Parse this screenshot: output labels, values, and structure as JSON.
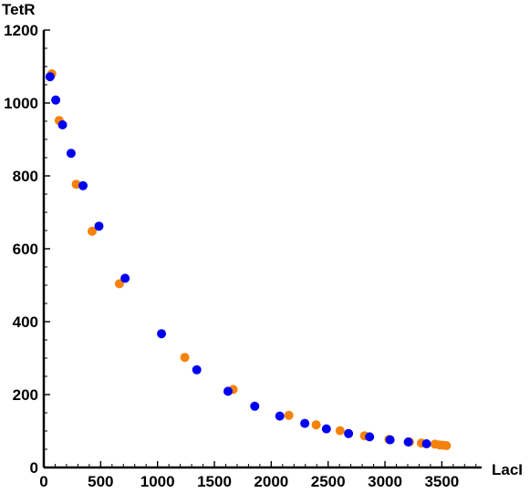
{
  "chart_data": {
    "type": "scatter",
    "title": "",
    "xlabel": "LacI",
    "ylabel": "TetR",
    "xlim": [
      0,
      3850
    ],
    "ylim": [
      0,
      1200
    ],
    "xticks": [
      0,
      500,
      1000,
      1500,
      2000,
      2500,
      3000,
      3500
    ],
    "yticks": [
      0,
      200,
      400,
      600,
      800,
      1000,
      1200
    ],
    "grid": false,
    "legend": "none",
    "series": [
      {
        "color": "#f5820d",
        "points": [
          [
            70,
            1080
          ],
          [
            135,
            952
          ],
          [
            285,
            777
          ],
          [
            425,
            648
          ],
          [
            665,
            504
          ],
          [
            1240,
            302
          ],
          [
            1665,
            214
          ],
          [
            2155,
            143
          ],
          [
            2395,
            117
          ],
          [
            2605,
            101
          ],
          [
            2820,
            87
          ],
          [
            3035,
            77
          ],
          [
            3215,
            70
          ],
          [
            3320,
            67
          ],
          [
            3440,
            64
          ],
          [
            3480,
            62
          ],
          [
            3510,
            61
          ],
          [
            3540,
            60
          ]
        ]
      },
      {
        "color": "#0000f0",
        "points": [
          [
            55,
            1072
          ],
          [
            105,
            1008
          ],
          [
            165,
            940
          ],
          [
            240,
            862
          ],
          [
            345,
            773
          ],
          [
            485,
            662
          ],
          [
            715,
            519
          ],
          [
            1035,
            367
          ],
          [
            1345,
            268
          ],
          [
            1620,
            209
          ],
          [
            1855,
            168
          ],
          [
            2075,
            141
          ],
          [
            2295,
            121
          ],
          [
            2485,
            106
          ],
          [
            2680,
            93
          ],
          [
            2865,
            84
          ],
          [
            3045,
            76
          ],
          [
            3205,
            70
          ],
          [
            3365,
            65
          ]
        ]
      }
    ]
  }
}
